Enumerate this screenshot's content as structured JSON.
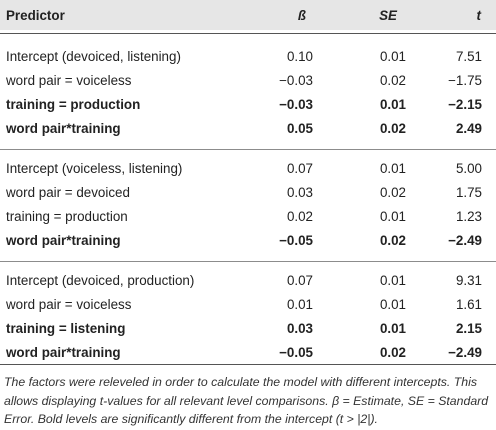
{
  "header": {
    "predictor": "Predictor",
    "beta": "ß",
    "se": "SE",
    "t": "t"
  },
  "groups": [
    {
      "rows": [
        {
          "predictor": "Intercept (devoiced, listening)",
          "beta": "0.10",
          "se": "0.01",
          "t": "7.51",
          "bold": false
        },
        {
          "predictor": "word pair = voiceless",
          "beta": "−0.03",
          "se": "0.02",
          "t": "−1.75",
          "bold": false
        },
        {
          "predictor": "training = production",
          "beta": "−0.03",
          "se": "0.01",
          "t": "−2.15",
          "bold": true
        },
        {
          "predictor": "word pair*training",
          "beta": "0.05",
          "se": "0.02",
          "t": "2.49",
          "bold": true
        }
      ]
    },
    {
      "rows": [
        {
          "predictor": "Intercept (voiceless, listening)",
          "beta": "0.07",
          "se": "0.01",
          "t": "5.00",
          "bold": false
        },
        {
          "predictor": "word pair = devoiced",
          "beta": "0.03",
          "se": "0.02",
          "t": "1.75",
          "bold": false
        },
        {
          "predictor": "training = production",
          "beta": "0.02",
          "se": "0.01",
          "t": "1.23",
          "bold": false
        },
        {
          "predictor": "word pair*training",
          "beta": "−0.05",
          "se": "0.02",
          "t": "−2.49",
          "bold": true
        }
      ]
    },
    {
      "rows": [
        {
          "predictor": "Intercept (devoiced, production)",
          "beta": "0.07",
          "se": "0.01",
          "t": "9.31",
          "bold": false
        },
        {
          "predictor": "word pair = voiceless",
          "beta": "0.01",
          "se": "0.01",
          "t": "1.61",
          "bold": false
        },
        {
          "predictor": "training = listening",
          "beta": "0.03",
          "se": "0.01",
          "t": "2.15",
          "bold": true
        },
        {
          "predictor": "word pair*training",
          "beta": "−0.05",
          "se": "0.02",
          "t": "−2.49",
          "bold": true
        }
      ]
    }
  ],
  "footnote": "The factors were releveled in order to calculate the model with different intercepts. This allows displaying t-values for all relevant level comparisons. β = Estimate, SE = Standard Error. Bold levels are significantly different from the intercept (t > |2|)."
}
